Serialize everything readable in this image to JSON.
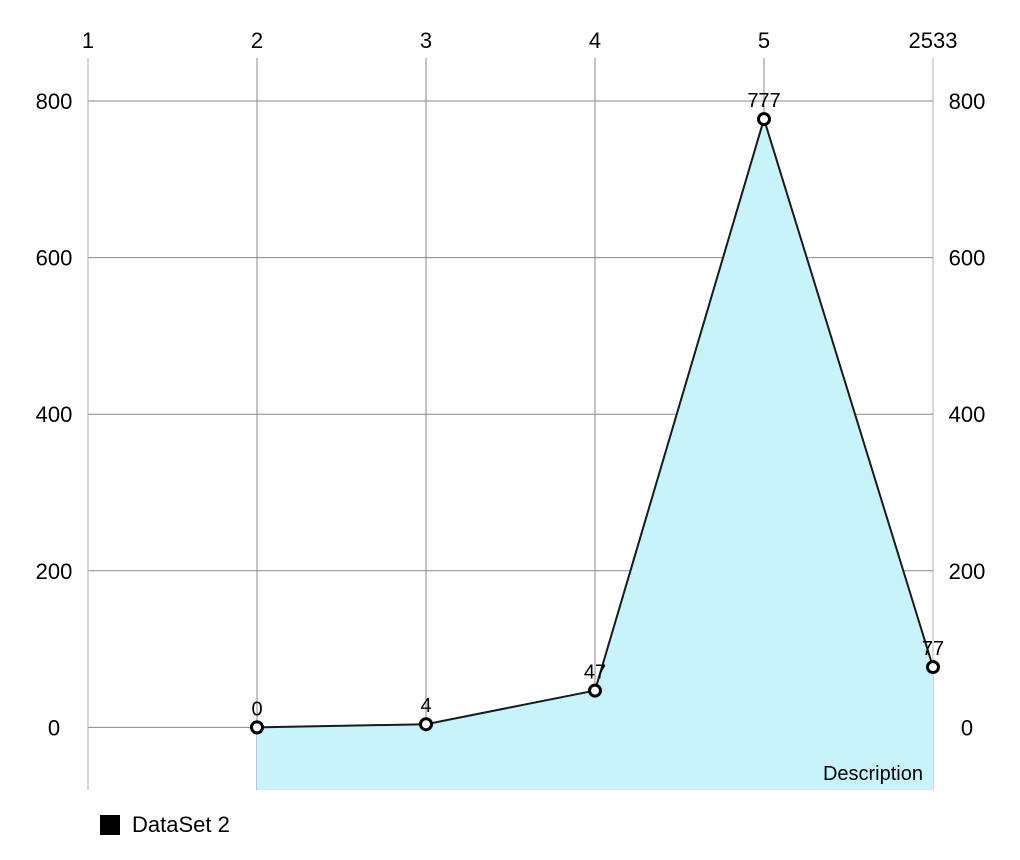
{
  "chart_data": {
    "type": "area",
    "x_axis": {
      "position": "top",
      "min": 1,
      "max": 6,
      "tick_values": [
        1,
        2,
        3,
        4,
        5,
        6
      ],
      "tick_labels": [
        "1",
        "2",
        "3",
        "4",
        "5",
        "2533"
      ]
    },
    "y_axis": {
      "min": -80,
      "max": 855,
      "ticks": [
        0,
        200,
        400,
        600,
        800
      ],
      "tick_labels": [
        "0",
        "200",
        "400",
        "600",
        "800"
      ],
      "sides": [
        "left",
        "right"
      ]
    },
    "grid": true,
    "series": [
      {
        "name": "DataSet 2",
        "x": [
          2,
          3,
          4,
          5,
          6
        ],
        "values": [
          0,
          4,
          47,
          777,
          77
        ],
        "value_labels": [
          "0",
          "4",
          "47",
          "777",
          "77"
        ],
        "fill_color": "#c9f3fa",
        "line_color": "#1a1a1a",
        "marker_fill": "#ffffff",
        "marker_stroke": "#000000"
      }
    ],
    "description": "Description",
    "legend_placement": "bottom-left"
  }
}
